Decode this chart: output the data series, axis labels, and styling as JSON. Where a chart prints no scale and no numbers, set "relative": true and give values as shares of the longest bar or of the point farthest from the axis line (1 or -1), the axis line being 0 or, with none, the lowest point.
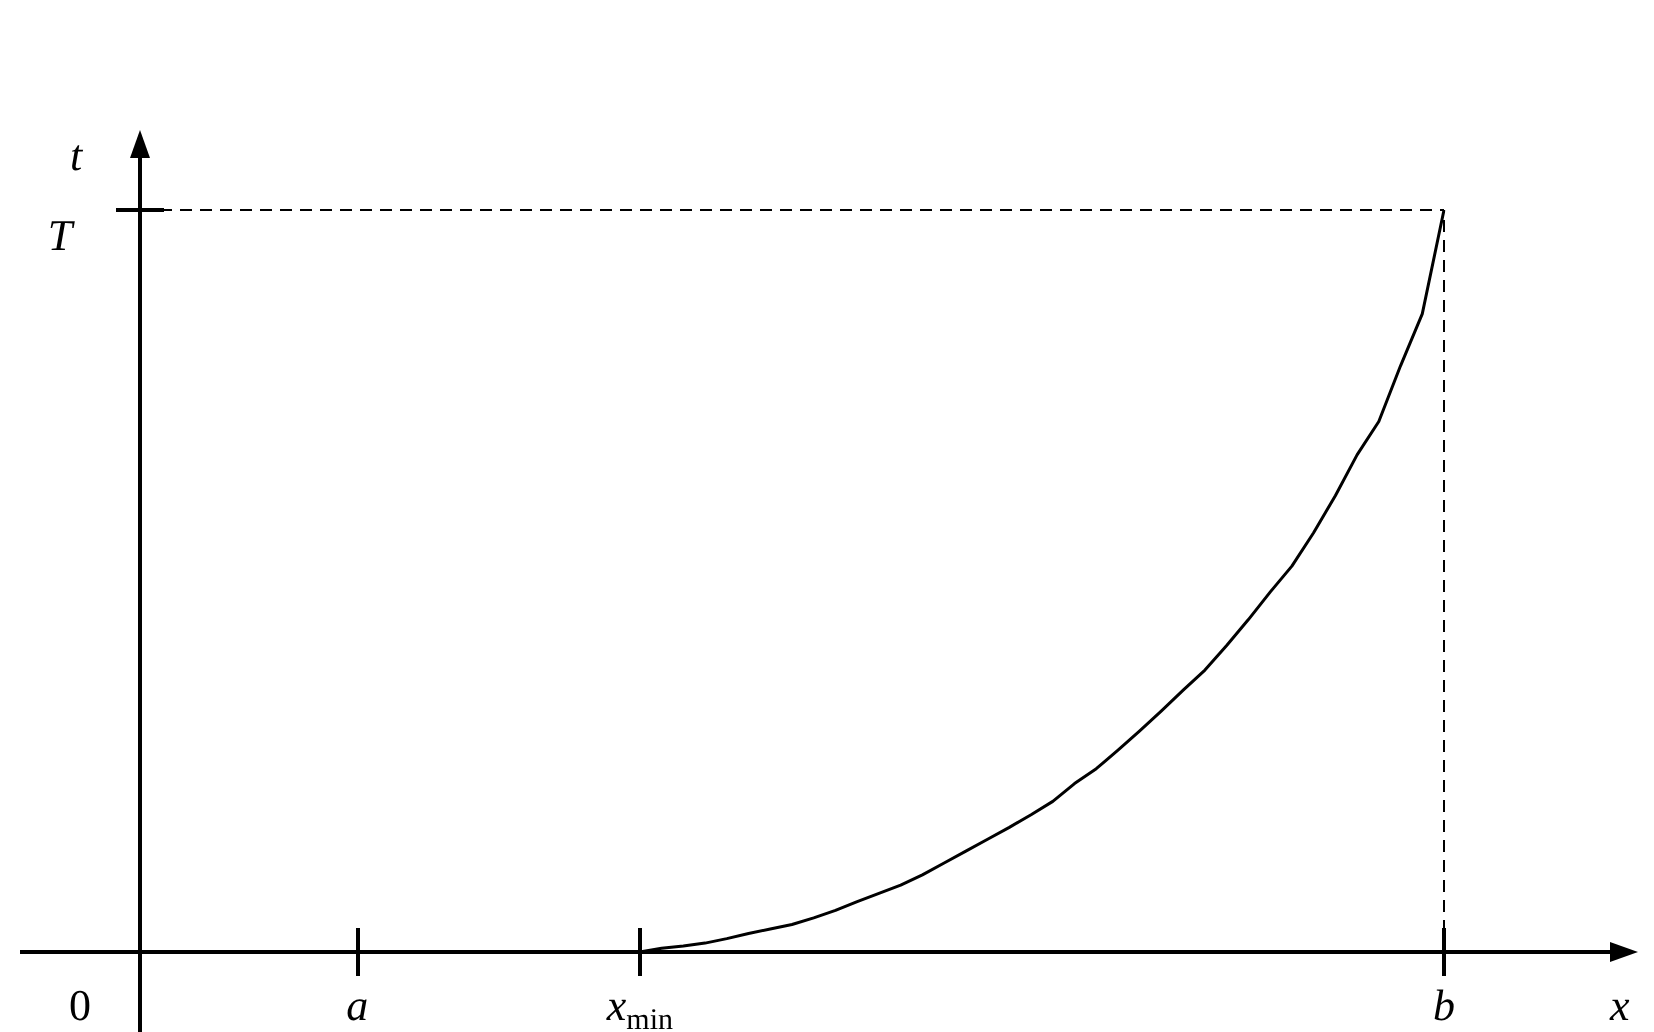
{
  "chart_data": {
    "type": "line",
    "relative": true,
    "xlabel": "x",
    "ylabel": "t",
    "categories": [
      null,
      null,
      null,
      null,
      null,
      null,
      null,
      null,
      null,
      null,
      "a",
      null,
      null,
      null,
      null,
      null,
      null,
      null,
      null,
      null,
      null,
      null,
      null,
      "x$_{min}$",
      null,
      null,
      null,
      null,
      null,
      null,
      null,
      null,
      null,
      null,
      null,
      null,
      null,
      null,
      null,
      null,
      null,
      null,
      null,
      null,
      null,
      null,
      null,
      null,
      null,
      null,
      null,
      null,
      null,
      null,
      null,
      null,
      null,
      null,
      null,
      null,
      "b"
    ],
    "series": [
      {
        "color": "#000000",
        "values": [
          null,
          null,
          null,
          null,
          null,
          null,
          null,
          null,
          null,
          null,
          null,
          null,
          null,
          null,
          null,
          null,
          null,
          null,
          null,
          null,
          null,
          null,
          null,
          0,
          0.005,
          0.008,
          0.012,
          0.018,
          0.025,
          0.031,
          0.037,
          0.046,
          0.056,
          0.068,
          0.079,
          0.09,
          0.104,
          0.12,
          0.136,
          0.152,
          0.168,
          0.185,
          0.203,
          0.227,
          0.247,
          0.272,
          0.298,
          0.325,
          0.353,
          0.38,
          0.413,
          0.448,
          0.485,
          0.52,
          0.565,
          0.615,
          0.67,
          0.715,
          0.79,
          0.86,
          1
        ]
      }
    ],
    "annotations": [
      "0"
    ],
    "ref_lines": [
      {
        "axis": "y",
        "value": 1,
        "label": "T",
        "line_style": "dashed"
      },
      {
        "axis": "x",
        "value": "b",
        "line_style": "dashed"
      }
    ],
    "line_style": "solid"
  }
}
